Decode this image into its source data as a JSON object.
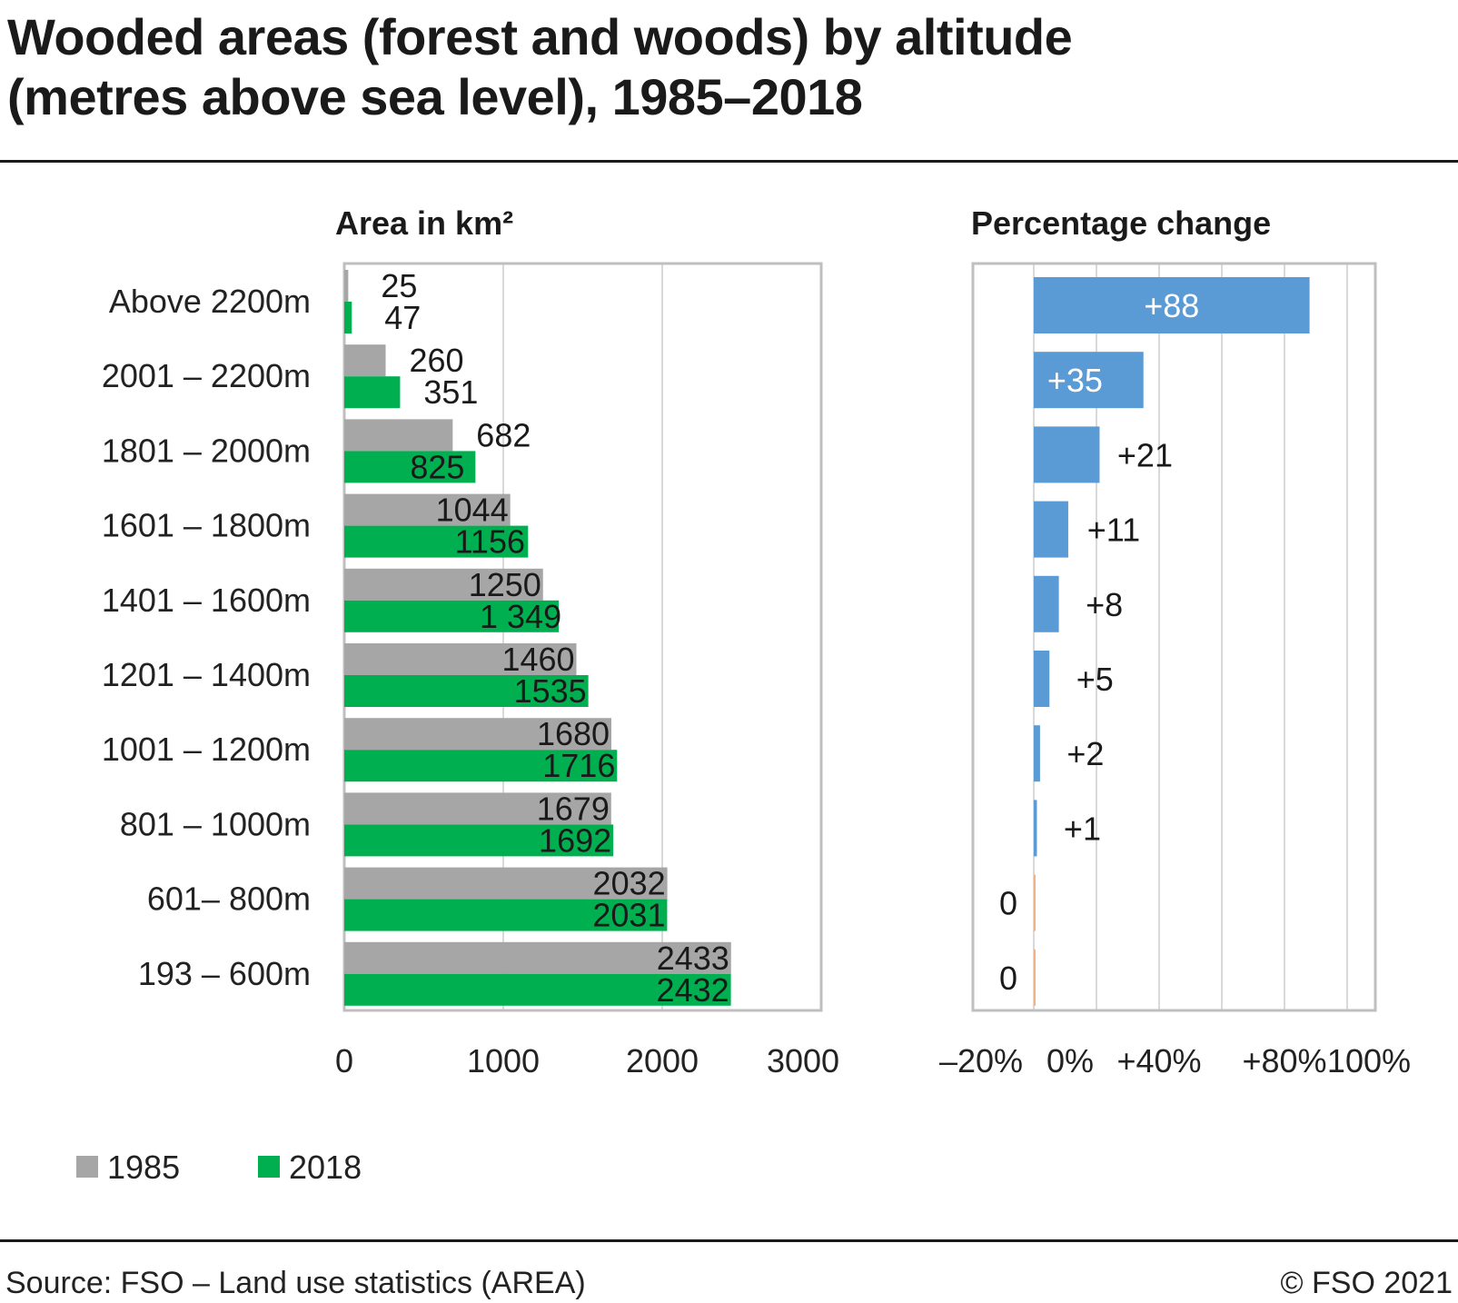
{
  "title_line1": "Wooded areas (forest and woods) by altitude",
  "title_line2": "(metres above sea level), 1985–2018",
  "source": "Source: FSO – Land use statistics (AREA)",
  "copyright": "© FSO 2021",
  "colors": {
    "series_1985": "#a6a6a6",
    "series_2018": "#00b050",
    "pct_positive": "#5b9bd5",
    "pct_zero": "#f4b183",
    "grid": "#d9d9d9",
    "frame": "#bfbfbf"
  },
  "chart_data": [
    {
      "type": "bar",
      "orientation": "horizontal",
      "title": "Area in km²",
      "categories": [
        "Above 2200m",
        "2001 – 2200m",
        "1801 – 2000m",
        "1601 – 1800m",
        "1401 – 1600m",
        "1201 – 1400m",
        "1001 – 1200m",
        "801 – 1000m",
        "601– 800m",
        "193 – 600m"
      ],
      "series": [
        {
          "name": "1985",
          "values": [
            25,
            260,
            682,
            1044,
            1250,
            1460,
            1680,
            1679,
            2032,
            2433
          ],
          "labels": [
            "25",
            "260",
            "682",
            "1044",
            "1250",
            "1460",
            "1680",
            "1679",
            "2032",
            "2433"
          ]
        },
        {
          "name": "2018",
          "values": [
            47,
            351,
            825,
            1156,
            1349,
            1535,
            1716,
            1692,
            2031,
            2432
          ],
          "labels": [
            "47",
            "351",
            "825",
            "1156",
            "1 349",
            "1535",
            "1716",
            "1692",
            "2031",
            "2432"
          ]
        }
      ],
      "xlim": [
        0,
        3000
      ],
      "xticks": [
        0,
        1000,
        2000,
        3000
      ],
      "xtick_labels": [
        "0",
        "1000",
        "2000",
        "3000"
      ],
      "grid": true,
      "legend": {
        "position": "bottom-left",
        "entries": [
          "1985",
          "2018"
        ]
      }
    },
    {
      "type": "bar",
      "orientation": "horizontal",
      "title": "Percentage change",
      "categories": [
        "Above 2200m",
        "2001 – 2200m",
        "1801 – 2000m",
        "1601 – 1800m",
        "1401 – 1600m",
        "1201 – 1400m",
        "1001 – 1200m",
        "801 – 1000m",
        "601– 800m",
        "193 – 600m"
      ],
      "values": [
        88,
        35,
        21,
        11,
        8,
        5,
        2,
        1,
        0,
        0
      ],
      "labels": [
        "+88",
        "+35",
        "+21",
        "+11",
        "+8",
        "+5",
        "+2",
        "+1",
        "0",
        "0"
      ],
      "xlim": [
        -20,
        100
      ],
      "xticks": [
        -20,
        0,
        20,
        40,
        60,
        80,
        100
      ],
      "xtick_labels": [
        "–20%",
        "0%",
        "",
        "+40%",
        "",
        "+80%",
        "100%"
      ],
      "grid": true
    }
  ]
}
